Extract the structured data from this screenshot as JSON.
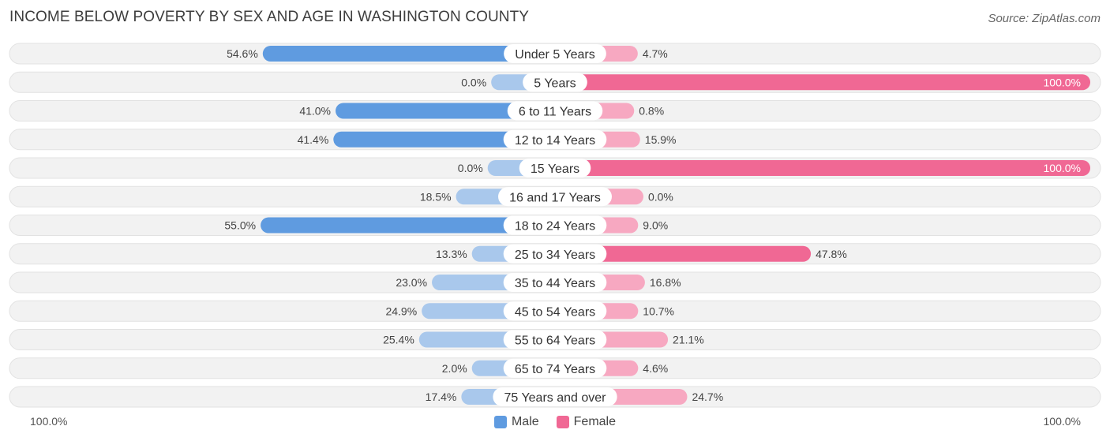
{
  "header": {
    "title": "INCOME BELOW POVERTY BY SEX AND AGE IN WASHINGTON COUNTY",
    "source": "Source: ZipAtlas.com"
  },
  "legend": {
    "male": "Male",
    "female": "Female"
  },
  "axis": {
    "left_label": "100.0%",
    "right_label": "100.0%"
  },
  "colors": {
    "male_strong": "#5f9be0",
    "male_light": "#a9c8ec",
    "female_strong": "#f06894",
    "female_light": "#f7a8c1",
    "row_bg": "#f2f2f2",
    "row_border": "#e2e2e2"
  },
  "chart_data": {
    "type": "bar",
    "orientation": "horizontal-diverging",
    "title": "INCOME BELOW POVERTY BY SEX AND AGE IN WASHINGTON COUNTY",
    "categories": [
      "Under 5 Years",
      "5 Years",
      "6 to 11 Years",
      "12 to 14 Years",
      "15 Years",
      "16 and 17 Years",
      "18 to 24 Years",
      "25 to 34 Years",
      "35 to 44 Years",
      "45 to 54 Years",
      "55 to 64 Years",
      "65 to 74 Years",
      "75 Years and over"
    ],
    "series": [
      {
        "name": "Male",
        "values": [
          54.6,
          0.0,
          41.0,
          41.4,
          0.0,
          18.5,
          55.0,
          13.3,
          23.0,
          24.9,
          25.4,
          2.0,
          17.4
        ],
        "labels": [
          "54.6%",
          "0.0%",
          "41.0%",
          "41.4%",
          "0.0%",
          "18.5%",
          "55.0%",
          "13.3%",
          "23.0%",
          "24.9%",
          "25.4%",
          "2.0%",
          "17.4%"
        ]
      },
      {
        "name": "Female",
        "values": [
          4.7,
          100.0,
          0.8,
          15.9,
          100.0,
          0.0,
          9.0,
          47.8,
          16.8,
          10.7,
          21.1,
          4.6,
          24.7
        ],
        "labels": [
          "4.7%",
          "100.0%",
          "0.8%",
          "15.9%",
          "100.0%",
          "0.0%",
          "9.0%",
          "47.8%",
          "16.8%",
          "10.7%",
          "21.1%",
          "4.6%",
          "24.7%"
        ]
      }
    ],
    "xlim": [
      -100,
      100
    ],
    "xlabel": "",
    "ylabel": "",
    "legend_position": "bottom-center"
  }
}
